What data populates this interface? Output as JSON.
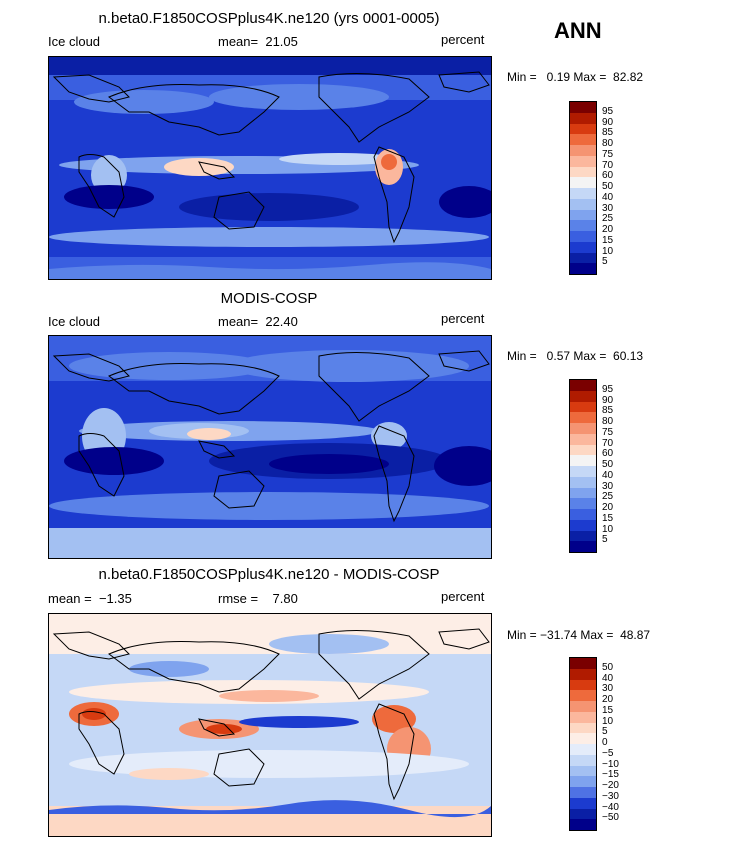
{
  "header": {
    "season": "ANN"
  },
  "panels": [
    {
      "title": "n.beta0.F1850COSPplus4K.ne120 (yrs 0001-0005)",
      "left_label": "Ice cloud",
      "center_label": "mean=  21.05",
      "right_label": "percent",
      "minmax": "Min =   0.19 Max =  82.82",
      "scale_labels": [
        "95",
        "90",
        "85",
        "80",
        "75",
        "70",
        "60",
        "50",
        "40",
        "30",
        "25",
        "20",
        "15",
        "10",
        "5"
      ],
      "colors": [
        "#7a0000",
        "#b01b00",
        "#d83b10",
        "#ee6a3c",
        "#f59472",
        "#fbb79d",
        "#fdd8c4",
        "#f4f4f4",
        "#c5d8f6",
        "#a3c0f2",
        "#7fa3ee",
        "#5a82e8",
        "#3a5fe0",
        "#1c3bcf",
        "#0a1fa5",
        "#00008a"
      ]
    },
    {
      "title": "MODIS-COSP",
      "left_label": "Ice cloud",
      "center_label": "mean=  22.40",
      "right_label": "percent",
      "minmax": "Min =   0.57 Max =  60.13",
      "scale_labels": [
        "95",
        "90",
        "85",
        "80",
        "75",
        "70",
        "60",
        "50",
        "40",
        "30",
        "25",
        "20",
        "15",
        "10",
        "5"
      ],
      "colors": [
        "#7a0000",
        "#b01b00",
        "#d83b10",
        "#ee6a3c",
        "#f59472",
        "#fbb79d",
        "#fdd8c4",
        "#f4f4f4",
        "#c5d8f6",
        "#a3c0f2",
        "#7fa3ee",
        "#5a82e8",
        "#3a5fe0",
        "#1c3bcf",
        "#0a1fa5",
        "#00008a"
      ]
    },
    {
      "title": "n.beta0.F1850COSPplus4K.ne120 - MODIS-COSP",
      "left_label": "mean =  −1.35",
      "center_label": "rmse =    7.80",
      "right_label": "percent",
      "minmax": "Min = −31.74 Max =  48.87",
      "scale_labels": [
        "50",
        "40",
        "30",
        "20",
        "15",
        "10",
        "5",
        "0",
        "−5",
        "−10",
        "−15",
        "−20",
        "−30",
        "−40",
        "−50"
      ],
      "colors": [
        "#7a0000",
        "#b01b00",
        "#d83b10",
        "#ee6a3c",
        "#f59472",
        "#fbb79d",
        "#fdd8c4",
        "#fdeee6",
        "#e4ecfa",
        "#c5d8f6",
        "#a3c0f2",
        "#7fa3ee",
        "#4f72e4",
        "#1c3bcf",
        "#0a1fa5",
        "#00008a"
      ]
    }
  ]
}
